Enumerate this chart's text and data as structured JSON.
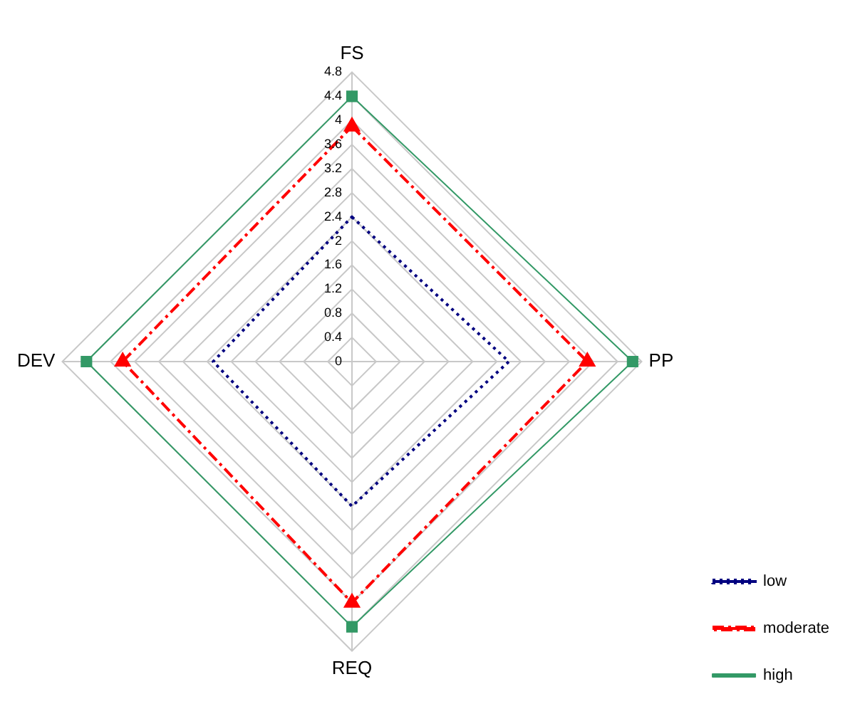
{
  "chart_data": {
    "type": "radar",
    "categories": [
      "FS",
      "PP",
      "REQ",
      "DEV"
    ],
    "series": [
      {
        "name": "low",
        "color": "#000080",
        "values": [
          2.4,
          2.6,
          2.4,
          2.3
        ],
        "line_style": "dotted",
        "marker": "none"
      },
      {
        "name": "moderate",
        "color": "#ff0000",
        "values": [
          3.9,
          3.9,
          4.0,
          3.8
        ],
        "line_style": "dashed",
        "marker": "triangle"
      },
      {
        "name": "high",
        "color": "#339966",
        "values": [
          4.4,
          4.65,
          4.4,
          4.4
        ],
        "line_style": "solid",
        "marker": "square"
      }
    ],
    "ylim": [
      0,
      4.8
    ],
    "yticks": [
      0,
      0.4,
      0.8,
      1.2,
      1.6,
      2,
      2.4,
      2.8,
      3.2,
      3.6,
      4,
      4.4,
      4.8
    ],
    "grid": true,
    "legend": "bottom right"
  }
}
